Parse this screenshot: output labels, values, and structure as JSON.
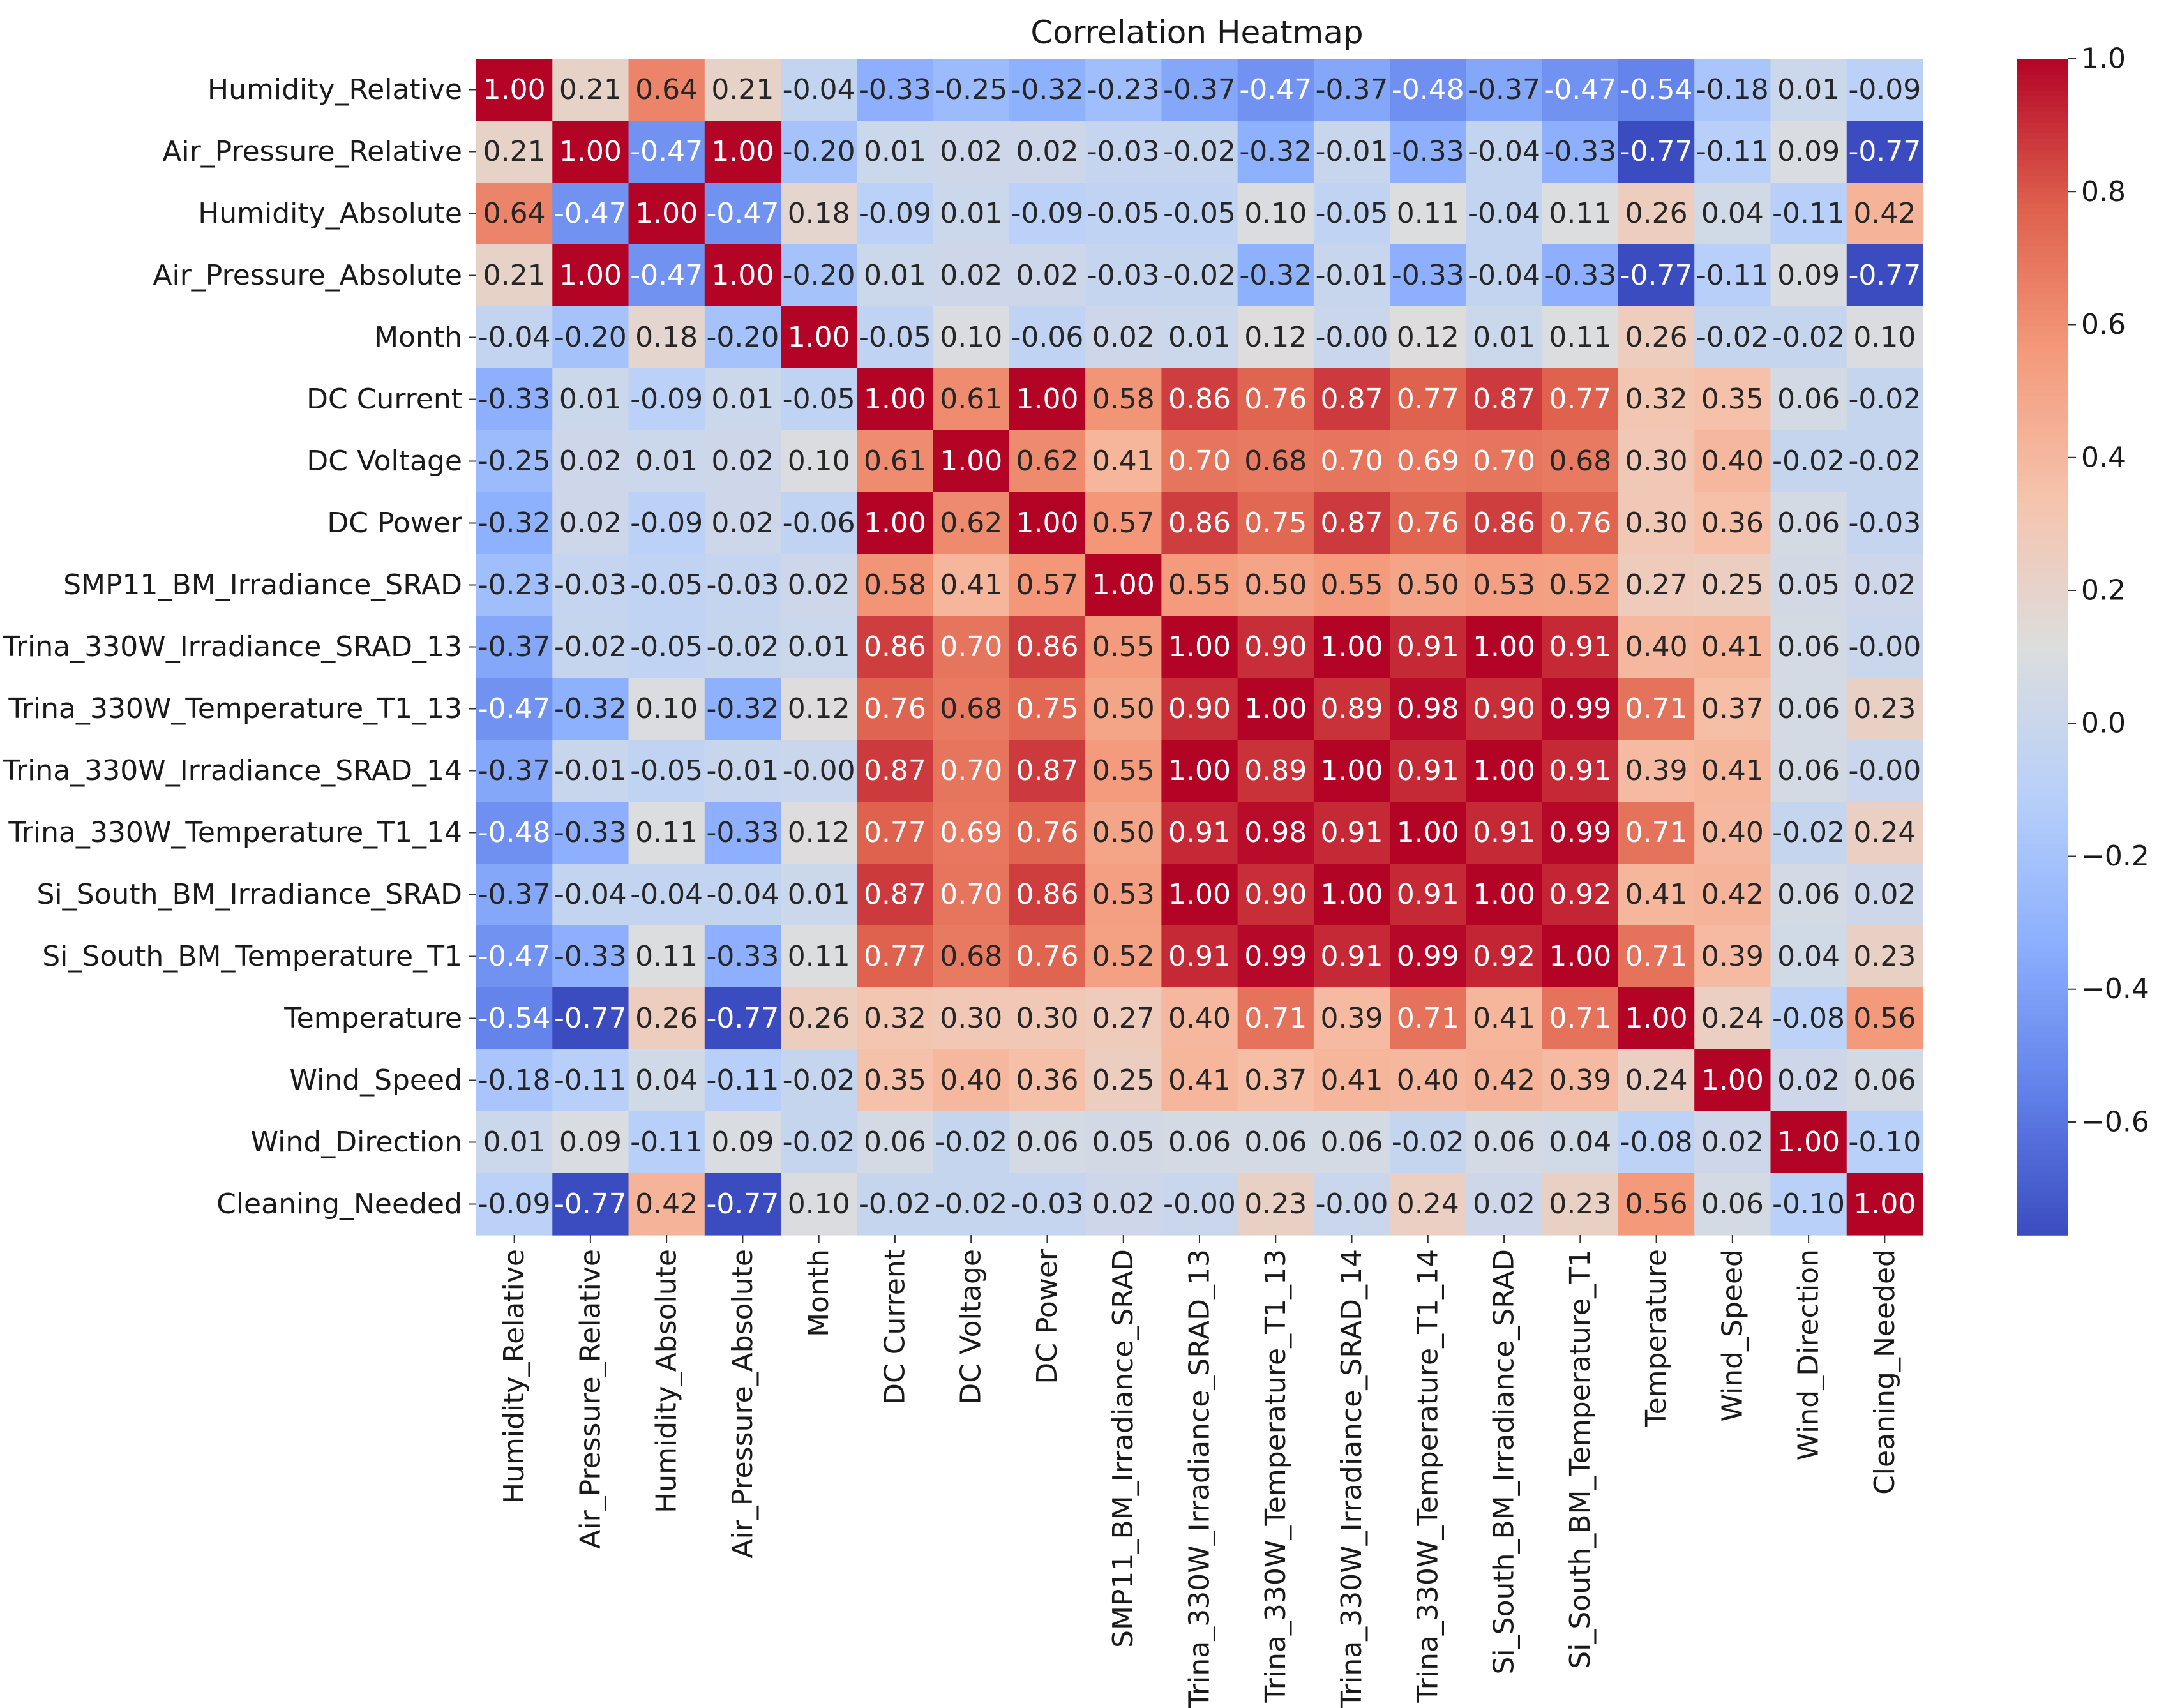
{
  "chart_data": {
    "type": "heatmap",
    "title": "Correlation Heatmap",
    "colormap": "coolwarm",
    "labels": [
      "Humidity_Relative",
      "Air_Pressure_Relative",
      "Humidity_Absolute",
      "Air_Pressure_Absolute",
      "Month",
      "DC Current",
      "DC Voltage",
      "DC Power",
      "SMP11_BM_Irradiance_SRAD",
      "Trina_330W_Irradiance_SRAD_13",
      "Trina_330W_Temperature_T1_13",
      "Trina_330W_Irradiance_SRAD_14",
      "Trina_330W_Temperature_T1_14",
      "Si_South_BM_Irradiance_SRAD",
      "Si_South_BM_Temperature_T1",
      "Temperature",
      "Wind_Speed",
      "Wind_Direction",
      "Cleaning_Needed"
    ],
    "matrix": [
      [
        "1.00",
        "0.21",
        "0.64",
        "0.21",
        "-0.04",
        "-0.33",
        "-0.25",
        "-0.32",
        "-0.23",
        "-0.37",
        "-0.47",
        "-0.37",
        "-0.48",
        "-0.37",
        "-0.47",
        "-0.54",
        "-0.18",
        "0.01",
        "-0.09"
      ],
      [
        "0.21",
        "1.00",
        "-0.47",
        "1.00",
        "-0.20",
        "0.01",
        "0.02",
        "0.02",
        "-0.03",
        "-0.02",
        "-0.32",
        "-0.01",
        "-0.33",
        "-0.04",
        "-0.33",
        "-0.77",
        "-0.11",
        "0.09",
        "-0.77"
      ],
      [
        "0.64",
        "-0.47",
        "1.00",
        "-0.47",
        "0.18",
        "-0.09",
        "0.01",
        "-0.09",
        "-0.05",
        "-0.05",
        "0.10",
        "-0.05",
        "0.11",
        "-0.04",
        "0.11",
        "0.26",
        "0.04",
        "-0.11",
        "0.42"
      ],
      [
        "0.21",
        "1.00",
        "-0.47",
        "1.00",
        "-0.20",
        "0.01",
        "0.02",
        "0.02",
        "-0.03",
        "-0.02",
        "-0.32",
        "-0.01",
        "-0.33",
        "-0.04",
        "-0.33",
        "-0.77",
        "-0.11",
        "0.09",
        "-0.77"
      ],
      [
        "-0.04",
        "-0.20",
        "0.18",
        "-0.20",
        "1.00",
        "-0.05",
        "0.10",
        "-0.06",
        "0.02",
        "0.01",
        "0.12",
        "-0.00",
        "0.12",
        "0.01",
        "0.11",
        "0.26",
        "-0.02",
        "-0.02",
        "0.10"
      ],
      [
        "-0.33",
        "0.01",
        "-0.09",
        "0.01",
        "-0.05",
        "1.00",
        "0.61",
        "1.00",
        "0.58",
        "0.86",
        "0.76",
        "0.87",
        "0.77",
        "0.87",
        "0.77",
        "0.32",
        "0.35",
        "0.06",
        "-0.02"
      ],
      [
        "-0.25",
        "0.02",
        "0.01",
        "0.02",
        "0.10",
        "0.61",
        "1.00",
        "0.62",
        "0.41",
        "0.70",
        "0.68",
        "0.70",
        "0.69",
        "0.70",
        "0.68",
        "0.30",
        "0.40",
        "-0.02",
        "-0.02"
      ],
      [
        "-0.32",
        "0.02",
        "-0.09",
        "0.02",
        "-0.06",
        "1.00",
        "0.62",
        "1.00",
        "0.57",
        "0.86",
        "0.75",
        "0.87",
        "0.76",
        "0.86",
        "0.76",
        "0.30",
        "0.36",
        "0.06",
        "-0.03"
      ],
      [
        "-0.23",
        "-0.03",
        "-0.05",
        "-0.03",
        "0.02",
        "0.58",
        "0.41",
        "0.57",
        "1.00",
        "0.55",
        "0.50",
        "0.55",
        "0.50",
        "0.53",
        "0.52",
        "0.27",
        "0.25",
        "0.05",
        "0.02"
      ],
      [
        "-0.37",
        "-0.02",
        "-0.05",
        "-0.02",
        "0.01",
        "0.86",
        "0.70",
        "0.86",
        "0.55",
        "1.00",
        "0.90",
        "1.00",
        "0.91",
        "1.00",
        "0.91",
        "0.40",
        "0.41",
        "0.06",
        "-0.00"
      ],
      [
        "-0.47",
        "-0.32",
        "0.10",
        "-0.32",
        "0.12",
        "0.76",
        "0.68",
        "0.75",
        "0.50",
        "0.90",
        "1.00",
        "0.89",
        "0.98",
        "0.90",
        "0.99",
        "0.71",
        "0.37",
        "0.06",
        "0.23"
      ],
      [
        "-0.37",
        "-0.01",
        "-0.05",
        "-0.01",
        "-0.00",
        "0.87",
        "0.70",
        "0.87",
        "0.55",
        "1.00",
        "0.89",
        "1.00",
        "0.91",
        "1.00",
        "0.91",
        "0.39",
        "0.41",
        "0.06",
        "-0.00"
      ],
      [
        "-0.48",
        "-0.33",
        "0.11",
        "-0.33",
        "0.12",
        "0.77",
        "0.69",
        "0.76",
        "0.50",
        "0.91",
        "0.98",
        "0.91",
        "1.00",
        "0.91",
        "0.99",
        "0.71",
        "0.40",
        "-0.02",
        "0.24"
      ],
      [
        "-0.37",
        "-0.04",
        "-0.04",
        "-0.04",
        "0.01",
        "0.87",
        "0.70",
        "0.86",
        "0.53",
        "1.00",
        "0.90",
        "1.00",
        "0.91",
        "1.00",
        "0.92",
        "0.41",
        "0.42",
        "0.06",
        "0.02"
      ],
      [
        "-0.47",
        "-0.33",
        "0.11",
        "-0.33",
        "0.11",
        "0.77",
        "0.68",
        "0.76",
        "0.52",
        "0.91",
        "0.99",
        "0.91",
        "0.99",
        "0.92",
        "1.00",
        "0.71",
        "0.39",
        "0.04",
        "0.23"
      ],
      [
        "-0.54",
        "-0.77",
        "0.26",
        "-0.77",
        "0.26",
        "0.32",
        "0.30",
        "0.30",
        "0.27",
        "0.40",
        "0.71",
        "0.39",
        "0.71",
        "0.41",
        "0.71",
        "1.00",
        "0.24",
        "-0.08",
        "0.56"
      ],
      [
        "-0.18",
        "-0.11",
        "0.04",
        "-0.11",
        "-0.02",
        "0.35",
        "0.40",
        "0.36",
        "0.25",
        "0.41",
        "0.37",
        "0.41",
        "0.40",
        "0.42",
        "0.39",
        "0.24",
        "1.00",
        "0.02",
        "0.06"
      ],
      [
        "0.01",
        "0.09",
        "-0.11",
        "0.09",
        "-0.02",
        "0.06",
        "-0.02",
        "0.06",
        "0.05",
        "0.06",
        "0.06",
        "0.06",
        "-0.02",
        "0.06",
        "0.04",
        "-0.08",
        "0.02",
        "1.00",
        "-0.10"
      ],
      [
        "-0.09",
        "-0.77",
        "0.42",
        "-0.77",
        "0.10",
        "-0.02",
        "-0.02",
        "-0.03",
        "0.02",
        "-0.00",
        "0.23",
        "-0.00",
        "0.24",
        "0.02",
        "0.23",
        "0.56",
        "0.06",
        "-0.10",
        "1.00"
      ]
    ],
    "colorbar": {
      "vmin": -0.77,
      "vmax": 1.0,
      "ticks": [
        1.0,
        0.8,
        0.6,
        0.4,
        0.2,
        0.0,
        -0.2,
        -0.4,
        -0.6
      ],
      "tick_labels": [
        "1.0",
        "0.8",
        "0.6",
        "0.4",
        "0.2",
        "0.0",
        "−0.2",
        "−0.4",
        "−0.6"
      ]
    }
  }
}
